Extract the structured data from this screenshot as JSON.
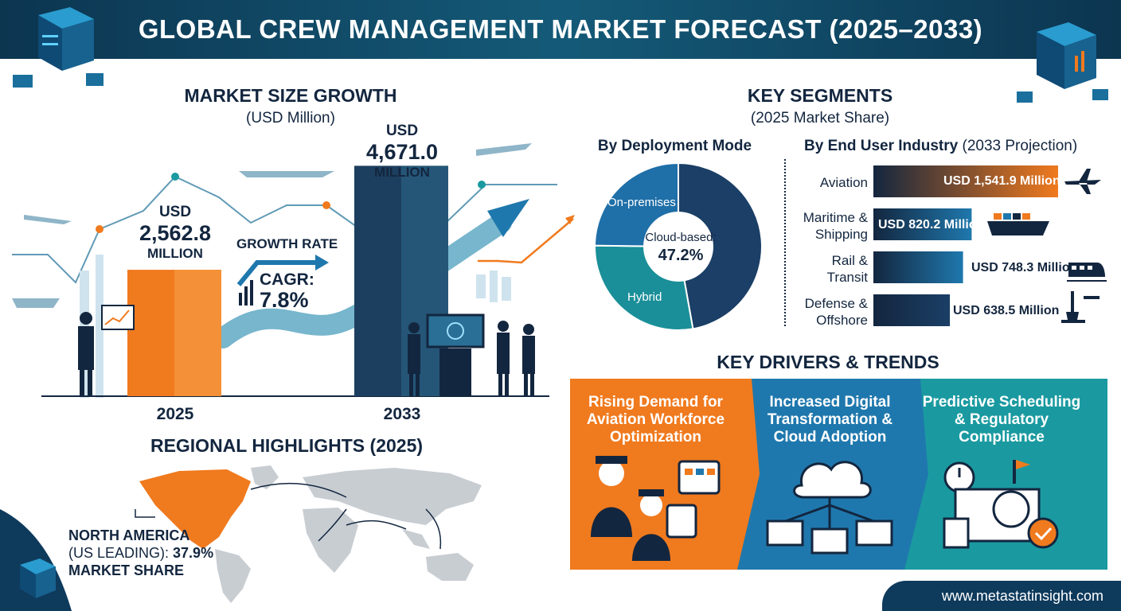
{
  "title": "GLOBAL CREW MANAGEMENT MARKET FORECAST (2025–2033)",
  "footer": {
    "url": "www.metastatinsight.com"
  },
  "market_size": {
    "heading": "MARKET SIZE GROWTH",
    "unit": "(USD Million)",
    "year_2025": "2025",
    "year_2033": "2033",
    "value_2025": {
      "line1": "USD",
      "line2": "2,562.8",
      "line3": "MILLION"
    },
    "value_2033": {
      "line1": "USD",
      "line2": "4,671.0",
      "line3": "MILLION"
    },
    "growth_label": "GROWTH RATE",
    "cagr_label": "CAGR:",
    "cagr_value": "7.8%"
  },
  "segments": {
    "heading": "KEY SEGMENTS",
    "subheading": "(2025 Market Share)",
    "deployment": {
      "heading": "By Deployment Mode",
      "center_label": "Cloud-based:",
      "center_value": "47.2%",
      "labels": {
        "on_premises": "On-premises",
        "hybrid": "Hybrid"
      }
    },
    "end_user": {
      "heading": "By End User Industry",
      "heading_note": "(2033 Projection)",
      "rows": [
        {
          "label1": "Aviation",
          "label2": "",
          "value_text": "USD 1,541.9 Million"
        },
        {
          "label1": "Maritime &",
          "label2": "Shipping",
          "value_text": "USD 820.2 Million"
        },
        {
          "label1": "Rail &",
          "label2": "Transit",
          "value_text": "USD 748.3 Million"
        },
        {
          "label1": "Defense &",
          "label2": "Offshore",
          "value_text": "USD 638.5 Million"
        }
      ]
    }
  },
  "regional": {
    "heading": "REGIONAL HIGHLIGHTS (2025)",
    "na_line1": "NORTH AMERICA",
    "na_line2_prefix": "(US LEADING): ",
    "na_line2_value": "37.9%",
    "na_line3": "MARKET SHARE"
  },
  "drivers": {
    "heading": "KEY DRIVERS & TRENDS",
    "cards": [
      {
        "line1": "Rising Demand for",
        "line2": "Aviation Workforce",
        "line3": "Optimization",
        "color": "#f07a1e"
      },
      {
        "line1": "Increased Digital",
        "line2": "Transformation &",
        "line3": "Cloud Adoption",
        "color": "#1f78ad"
      },
      {
        "line1": "Predictive Scheduling",
        "line2": "& Regulatory",
        "line3": "Compliance",
        "color": "#1a9aa0"
      }
    ]
  },
  "colors": {
    "navy": "#13263f",
    "orange": "#f07a1e",
    "teal": "#1a8f99",
    "blue": "#1f78ad",
    "dark_blue": "#1b3f66"
  },
  "chart_data": [
    {
      "type": "bar",
      "categories": [
        "2025",
        "2033"
      ],
      "values": [
        2562.8,
        4671.0
      ],
      "title": "MARKET SIZE GROWTH",
      "ylabel": "(USD Million)",
      "annotations": [
        "CAGR: 7.8%"
      ]
    },
    {
      "type": "pie",
      "title": "By Deployment Mode",
      "labels": [
        "Cloud-based",
        "On-premises",
        "Hybrid"
      ],
      "values": [
        47.2,
        28.0,
        24.8
      ],
      "colors": [
        "#1b3f66",
        "#1a8f99",
        "#1f6fa8"
      ]
    },
    {
      "type": "bar",
      "orientation": "horizontal",
      "title": "By End User Industry (2033 Projection)",
      "categories": [
        "Aviation",
        "Maritime & Shipping",
        "Rail & Transit",
        "Defense & Offshore"
      ],
      "values": [
        1541.9,
        820.2,
        748.3,
        638.5
      ],
      "unit": "USD Million"
    }
  ]
}
